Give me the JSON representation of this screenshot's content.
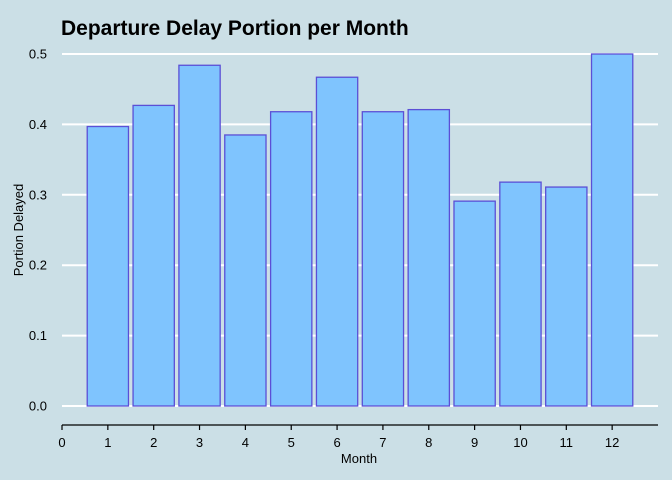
{
  "chart_data": {
    "type": "bar",
    "title": "Departure Delay Portion per Month",
    "xlabel": "Month",
    "ylabel": "Portion Delayed",
    "categories": [
      1,
      2,
      3,
      4,
      5,
      6,
      7,
      8,
      9,
      10,
      11,
      12
    ],
    "values": [
      0.397,
      0.427,
      0.484,
      0.385,
      0.418,
      0.467,
      0.418,
      0.421,
      0.291,
      0.318,
      0.311,
      0.5
    ],
    "xlim": [
      0,
      13
    ],
    "x_ticks": [
      0,
      1,
      2,
      3,
      4,
      5,
      6,
      7,
      8,
      9,
      10,
      11,
      12
    ],
    "ylim": [
      0,
      0.5
    ],
    "y_ticks": [
      0,
      0.1,
      0.2,
      0.3,
      0.4,
      0.5
    ],
    "y_tick_labels": [
      "0.0",
      "0.1",
      "0.2",
      "0.3",
      "0.4",
      "0.5"
    ],
    "grid": "horizontal",
    "legend": "none",
    "colors": {
      "background": "#cbdfe6",
      "bar_fill": "#7fc4fe",
      "bar_stroke": "#5b4fd6",
      "gridline": "#ffffff",
      "axis": "#000000"
    }
  }
}
